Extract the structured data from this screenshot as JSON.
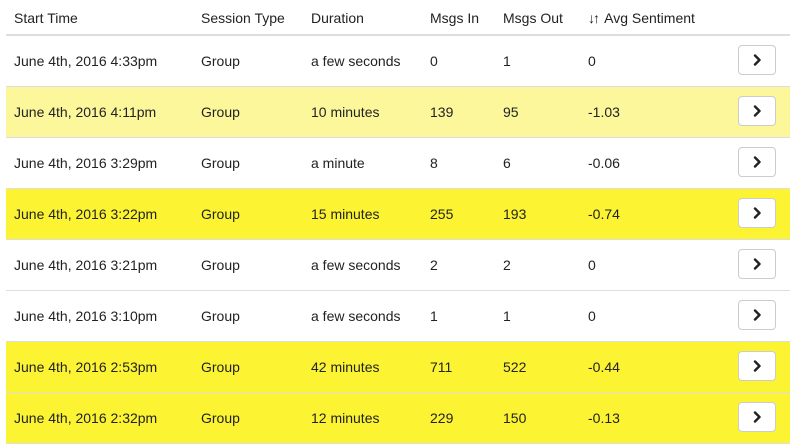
{
  "table": {
    "headers": {
      "start_time": "Start Time",
      "session_type": "Session Type",
      "duration": "Duration",
      "msgs_in": "Msgs In",
      "msgs_out": "Msgs Out",
      "sort_glyph": "↓↑",
      "avg_sentiment": "Avg Sentiment"
    },
    "rows": [
      {
        "start": "June 4th, 2016 4:33pm",
        "type": "Group",
        "duration": "a few seconds",
        "in": "0",
        "out": "1",
        "sentiment": "0",
        "highlight": "#ffffff"
      },
      {
        "start": "June 4th, 2016 4:11pm",
        "type": "Group",
        "duration": "10 minutes",
        "in": "139",
        "out": "95",
        "sentiment": "-1.03",
        "highlight": "#fcf79a"
      },
      {
        "start": "June 4th, 2016 3:29pm",
        "type": "Group",
        "duration": "a minute",
        "in": "8",
        "out": "6",
        "sentiment": "-0.06",
        "highlight": "#ffffff"
      },
      {
        "start": "June 4th, 2016 3:22pm",
        "type": "Group",
        "duration": "15 minutes",
        "in": "255",
        "out": "193",
        "sentiment": "-0.74",
        "highlight": "#fcf433"
      },
      {
        "start": "June 4th, 2016 3:21pm",
        "type": "Group",
        "duration": "a few seconds",
        "in": "2",
        "out": "2",
        "sentiment": "0",
        "highlight": "#ffffff"
      },
      {
        "start": "June 4th, 2016 3:10pm",
        "type": "Group",
        "duration": "a few seconds",
        "in": "1",
        "out": "1",
        "sentiment": "0",
        "highlight": "#ffffff"
      },
      {
        "start": "June 4th, 2016 2:53pm",
        "type": "Group",
        "duration": "42 minutes",
        "in": "711",
        "out": "522",
        "sentiment": "-0.44",
        "highlight": "#fcf433"
      },
      {
        "start": "June 4th, 2016 2:32pm",
        "type": "Group",
        "duration": "12 minutes",
        "in": "229",
        "out": "150",
        "sentiment": "-0.13",
        "highlight": "#fcf433"
      }
    ],
    "row_button_icon": "chevron-right-icon"
  }
}
